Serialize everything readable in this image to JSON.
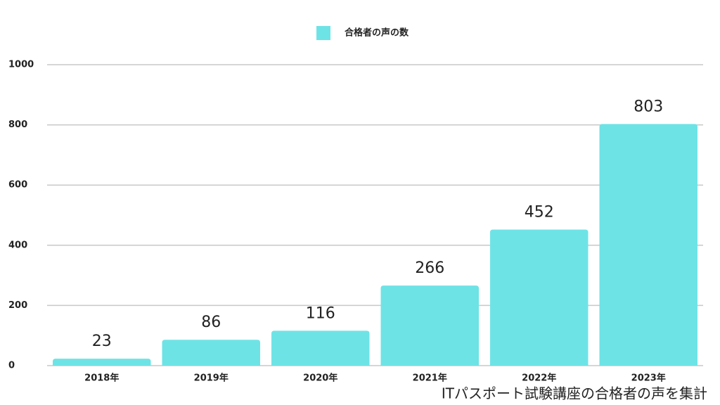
{
  "chart_data": {
    "type": "bar",
    "legend": "合格者の声の数",
    "categories": [
      "2018年",
      "2019年",
      "2020年",
      "2021年",
      "2022年",
      "2023年"
    ],
    "values": [
      23,
      86,
      116,
      266,
      452,
      803
    ],
    "color": "#6ee3e6",
    "ylim": [
      0,
      1000
    ],
    "yticks": [
      0,
      200,
      400,
      600,
      800,
      1000
    ],
    "grid": true,
    "annotation": "ITパスポート試験講座の合格者の声を集計"
  }
}
